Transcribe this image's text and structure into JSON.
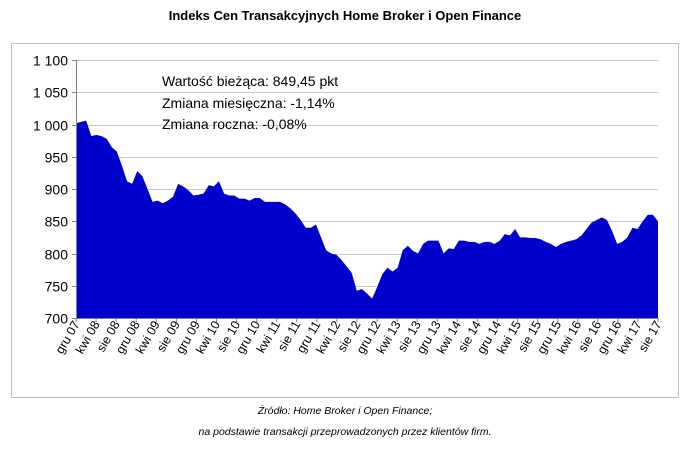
{
  "chart_data": {
    "type": "area",
    "title": "Indeks Cen Transakcyjnych Home Broker i Open Finance",
    "xlabel": "",
    "ylabel": "",
    "ylim": [
      700,
      1100
    ],
    "y_ticks": [
      700,
      750,
      800,
      850,
      900,
      950,
      1000,
      1050,
      1100
    ],
    "y_tick_labels": [
      "700",
      "750",
      "800",
      "850",
      "900",
      "950",
      "1 000",
      "1 050",
      "1 100"
    ],
    "x_tick_labels": [
      "gru 07",
      "kwi 08",
      "sie 08",
      "gru 08",
      "kwi 09",
      "sie 09",
      "gru 09",
      "kwi 10",
      "sie 10",
      "gru 10",
      "kwi 11",
      "sie 11",
      "gru 11",
      "kwi 12",
      "sie 12",
      "gru 12",
      "kwi 13",
      "sie 13",
      "gru 13",
      "kwi 14",
      "sie 14",
      "gru 14",
      "kwi 15",
      "sie 15",
      "gru 15",
      "kwi 16",
      "sie 16",
      "gru 16",
      "kwi 17",
      "sie 17"
    ],
    "grid": true,
    "legend": "none",
    "fill_color": "#0000CC",
    "series": [
      {
        "values": [
          1002,
          1004,
          1006,
          982,
          984,
          982,
          978,
          965,
          958,
          936,
          912,
          908,
          928,
          920,
          900,
          880,
          882,
          878,
          882,
          888,
          908,
          904,
          898,
          890,
          891,
          893,
          906,
          904,
          912,
          893,
          890,
          890,
          885,
          885,
          882,
          886,
          886,
          880,
          880,
          880,
          880,
          876,
          870,
          862,
          852,
          840,
          840,
          845,
          825,
          805,
          800,
          798,
          790,
          780,
          770,
          742,
          745,
          738,
          730,
          748,
          768,
          778,
          772,
          778,
          805,
          812,
          804,
          800,
          815,
          820,
          820,
          820,
          800,
          808,
          807,
          820,
          820,
          818,
          818,
          815,
          818,
          818,
          815,
          820,
          830,
          828,
          838,
          825,
          825,
          824,
          824,
          822,
          818,
          815,
          810,
          815,
          818,
          820,
          822,
          828,
          838,
          848,
          852,
          856,
          852,
          835,
          815,
          818,
          825,
          840,
          838,
          850,
          860,
          860,
          850
        ]
      }
    ],
    "annotations": [
      "Wartość bieżąca: 849,45 pkt",
      "Zmiana miesięczna: -1,14%",
      "Zmiana roczna: -0,08%"
    ],
    "source_lines": [
      "Źródło: Home Broker i Open Finance;",
      "na podstawie transakcji przeprowadzonych przez klientów firm."
    ]
  }
}
